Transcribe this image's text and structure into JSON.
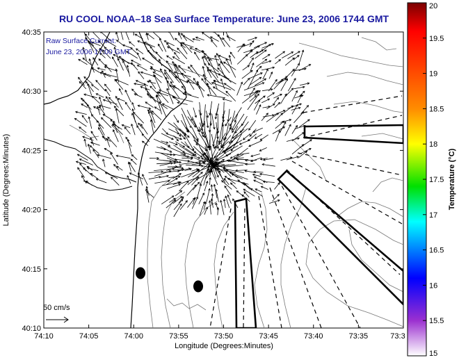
{
  "title": "RU COOL  NOAA–18  Sea Surface Temperature:  June 23, 2006 1744 GMT",
  "inset": {
    "line1": "Raw Surface Current:",
    "line2": "June 23, 2006 17:00 GMT"
  },
  "scale_label": "50 cm/s",
  "x_axis": {
    "label": "Longitude (Degrees:Minutes)",
    "ticks": [
      "74:10",
      "74:05",
      "74:00",
      "73:55",
      "73:50",
      "73:45",
      "73:40",
      "73:35",
      "73:3"
    ]
  },
  "y_axis": {
    "label": "Latitude (Degrees:Minutes)",
    "ticks": [
      "40:35",
      "40:30",
      "40:25",
      "40:20",
      "40:15",
      "40:10"
    ]
  },
  "colorbar": {
    "label": "Temperature (°C)",
    "ticks": [
      "20",
      "19.5",
      "19",
      "18.5",
      "18",
      "17.5",
      "17",
      "16.5",
      "16",
      "15.5",
      "15"
    ],
    "range": [
      15,
      20
    ],
    "colors": [
      "#ff0000",
      "#ff8800",
      "#ffff00",
      "#00e000",
      "#00ffff",
      "#0000ff",
      "#8000c0",
      "#ffffff"
    ]
  }
}
